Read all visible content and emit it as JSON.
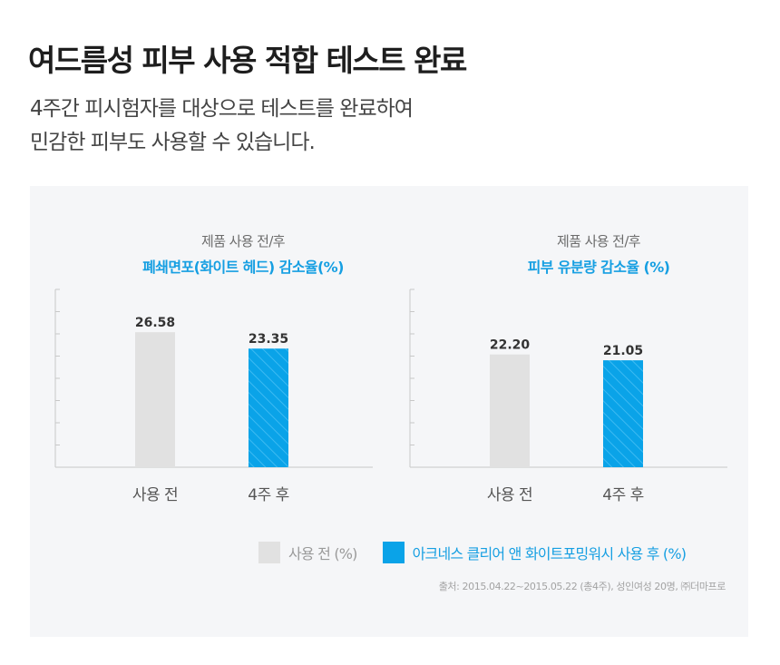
{
  "header": {
    "title": "여드름성 피부 사용 적합 테스트 완료",
    "subtitle_line1": "4주간 피시험자를 대상으로 테스트를 완료하여",
    "subtitle_line2": "민감한 피부도 사용할 수 있습니다."
  },
  "colors": {
    "before": "#e1e1e1",
    "after": "#0aa3e8",
    "accent": "#169fe2"
  },
  "legend": {
    "before": "사용 전 (%)",
    "after": "아크네스 클리어 앤 화이트포밍워시 사용 후 (%)"
  },
  "source": "출처: 2015.04.22~2015.05.22 (총4주), 성인여성 20명, ㈜더마프로",
  "chart_data": [
    {
      "type": "bar",
      "caption": "제품 사용 전/후",
      "title": "폐쇄면포(화이트 헤드) 감소율(%)",
      "categories": [
        "사용 전",
        "4주 후"
      ],
      "values": [
        26.58,
        23.35
      ],
      "value_labels": [
        "26.58",
        "23.35"
      ],
      "ylim": [
        0,
        35
      ],
      "ylabel": "",
      "xlabel": ""
    },
    {
      "type": "bar",
      "caption": "제품 사용 전/후",
      "title": "피부 유분량 감소율 (%)",
      "categories": [
        "사용 전",
        "4주 후"
      ],
      "values": [
        22.2,
        21.05
      ],
      "value_labels": [
        "22.20",
        "21.05"
      ],
      "ylim": [
        0,
        35
      ],
      "ylabel": "",
      "xlabel": ""
    }
  ]
}
